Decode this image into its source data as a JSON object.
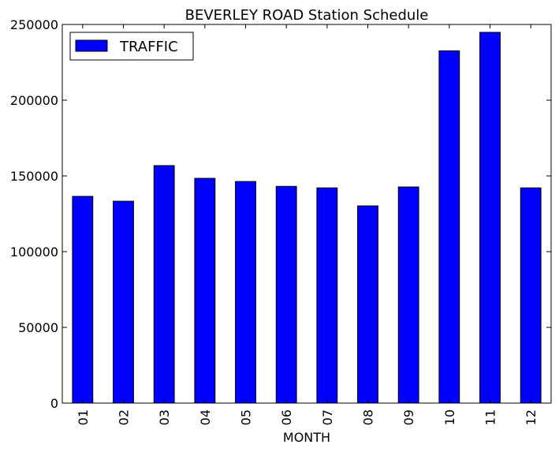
{
  "chart_data": {
    "type": "bar",
    "title": "BEVERLEY ROAD Station Schedule",
    "xlabel": "MONTH",
    "ylabel": "",
    "categories": [
      "01",
      "02",
      "03",
      "04",
      "05",
      "06",
      "07",
      "08",
      "09",
      "10",
      "11",
      "12"
    ],
    "series": [
      {
        "name": "TRAFFIC",
        "color": "#0000ff",
        "values": [
          136500,
          133300,
          156800,
          148400,
          146300,
          143100,
          142100,
          130200,
          142700,
          232600,
          244800,
          142100
        ]
      }
    ],
    "ylim": [
      0,
      250000
    ],
    "yticks": [
      "0",
      "50000",
      "100000",
      "150000",
      "200000",
      "250000"
    ],
    "legend_position": "top-left",
    "grid": false
  }
}
